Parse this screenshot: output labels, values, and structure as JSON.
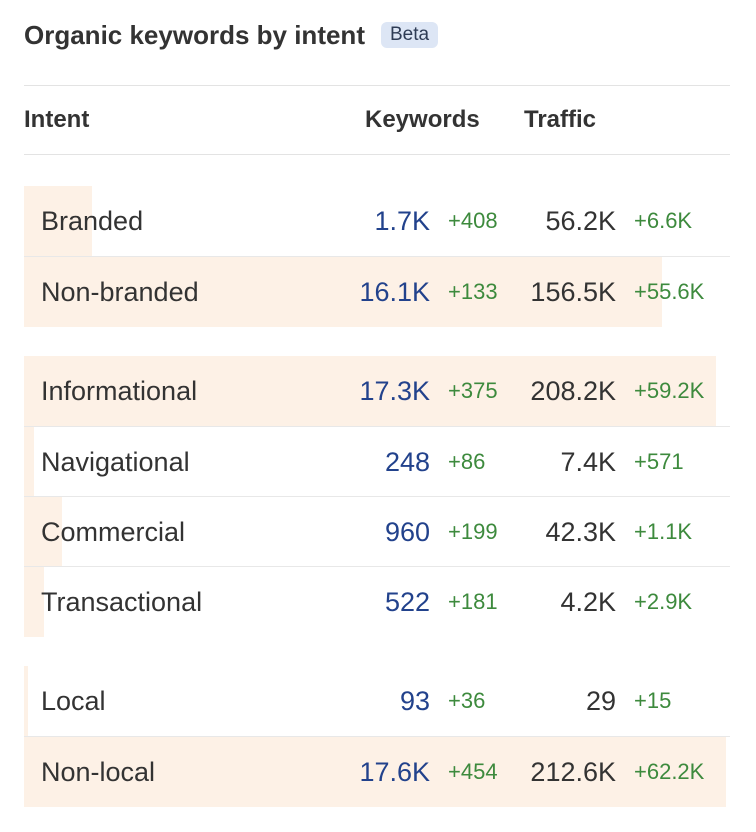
{
  "widget": {
    "title": "Organic keywords by intent",
    "badge": "Beta"
  },
  "columns": {
    "intent": "Intent",
    "keywords": "Keywords",
    "traffic": "Traffic"
  },
  "colors": {
    "bar": "#fdf1e6",
    "keywords_value": "#22428c",
    "delta_positive": "#3d8a3d",
    "badge_bg": "#dde6f5"
  },
  "groups": [
    {
      "name": "branded",
      "rows": [
        {
          "intent": "Branded",
          "keywords": "1.7K",
          "keywords_change": "+408",
          "traffic": "56.2K",
          "traffic_change": "+6.6K",
          "share": 0.097
        },
        {
          "intent": "Non-branded",
          "keywords": "16.1K",
          "keywords_change": "+133",
          "traffic": "156.5K",
          "traffic_change": "+55.6K",
          "share": 0.903
        }
      ]
    },
    {
      "name": "intent",
      "rows": [
        {
          "intent": "Informational",
          "keywords": "17.3K",
          "keywords_change": "+375",
          "traffic": "208.2K",
          "traffic_change": "+59.2K",
          "share": 0.98
        },
        {
          "intent": "Navigational",
          "keywords": "248",
          "keywords_change": "+86",
          "traffic": "7.4K",
          "traffic_change": "+571",
          "share": 0.014
        },
        {
          "intent": "Commercial",
          "keywords": "960",
          "keywords_change": "+199",
          "traffic": "42.3K",
          "traffic_change": "+1.1K",
          "share": 0.054
        },
        {
          "intent": "Transactional",
          "keywords": "522",
          "keywords_change": "+181",
          "traffic": "4.2K",
          "traffic_change": "+2.9K",
          "share": 0.029
        }
      ]
    },
    {
      "name": "local",
      "rows": [
        {
          "intent": "Local",
          "keywords": "93",
          "keywords_change": "+36",
          "traffic": "29",
          "traffic_change": "+15",
          "share": 0.005
        },
        {
          "intent": "Non-local",
          "keywords": "17.6K",
          "keywords_change": "+454",
          "traffic": "212.6K",
          "traffic_change": "+62.2K",
          "share": 0.995
        }
      ]
    }
  ]
}
